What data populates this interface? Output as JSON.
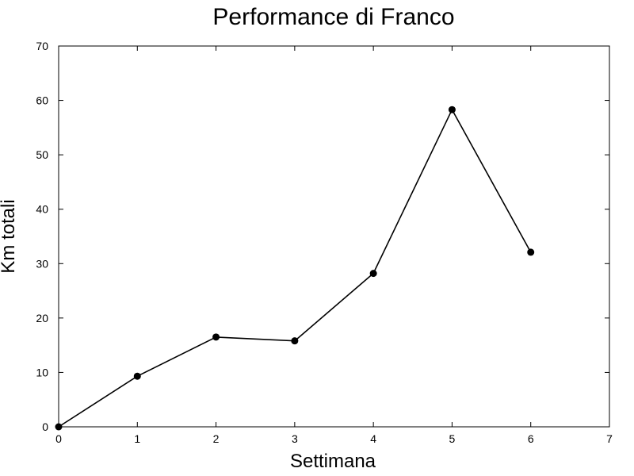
{
  "chart_data": {
    "type": "line",
    "title": "Performance di Franco",
    "xlabel": "Settimana",
    "ylabel": "Km totali",
    "xlim": [
      0,
      7
    ],
    "ylim": [
      0,
      70
    ],
    "xticks": [
      "0",
      "1",
      "2",
      "3",
      "4",
      "5",
      "6",
      "7"
    ],
    "yticks": [
      "0",
      "10",
      "20",
      "30",
      "40",
      "50",
      "60",
      "70"
    ],
    "grid": false,
    "series": [
      {
        "color": "#000000",
        "marker": "circle",
        "x": [
          0,
          1,
          2,
          3,
          4,
          5,
          6
        ],
        "y": [
          0,
          9.3,
          16.5,
          15.8,
          28.2,
          58.3,
          32.1
        ]
      }
    ]
  }
}
